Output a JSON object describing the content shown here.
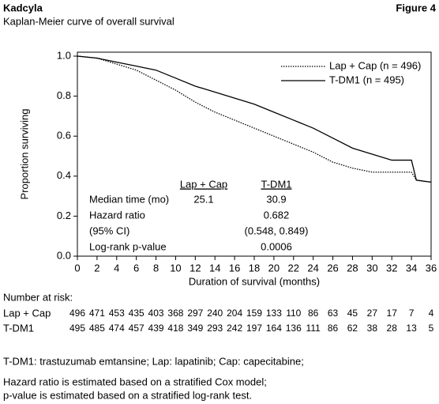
{
  "header": {
    "title": "Kadcyla",
    "figure": "Figure 4",
    "subtitle": "Kaplan-Meier curve of overall survival"
  },
  "chart_data": {
    "type": "line",
    "x": [
      0,
      2,
      4,
      6,
      8,
      10,
      12,
      14,
      16,
      18,
      20,
      22,
      24,
      26,
      28,
      30,
      32,
      34,
      34.5,
      36
    ],
    "series": [
      {
        "name": "Lap + Cap (n = 496)",
        "color": "#000000",
        "style": "dotted",
        "values": [
          1.0,
          0.99,
          0.96,
          0.93,
          0.88,
          0.83,
          0.77,
          0.72,
          0.68,
          0.64,
          0.6,
          0.56,
          0.52,
          0.47,
          0.44,
          0.42,
          0.42,
          0.42,
          0.38,
          0.37
        ]
      },
      {
        "name": "T-DM1 (n = 495)",
        "color": "#000000",
        "style": "solid",
        "values": [
          1.0,
          0.99,
          0.97,
          0.95,
          0.93,
          0.89,
          0.85,
          0.82,
          0.79,
          0.76,
          0.72,
          0.68,
          0.64,
          0.59,
          0.54,
          0.51,
          0.48,
          0.48,
          0.38,
          0.37
        ]
      }
    ],
    "xlabel": "Duration of survival (months)",
    "ylabel": "Proportion surviving",
    "xlim": [
      0,
      36
    ],
    "xticks": [
      0,
      2,
      4,
      6,
      8,
      10,
      12,
      14,
      16,
      18,
      20,
      22,
      24,
      26,
      28,
      30,
      32,
      34,
      36
    ],
    "ylim": [
      0,
      1
    ],
    "yticks": [
      {
        "value": 0,
        "label": "0.0"
      },
      {
        "value": 0.2,
        "label": "0.2"
      },
      {
        "value": 0.4,
        "label": "0.4"
      },
      {
        "value": 0.6,
        "label": "0.6"
      },
      {
        "value": 0.8,
        "label": "0.8"
      },
      {
        "value": 1,
        "label": "1.0"
      }
    ],
    "legend": "upper right",
    "stats": {
      "columns": [
        "Lap + Cap",
        "T-DM1"
      ],
      "rows": [
        {
          "label": "Median time (mo)",
          "cells": [
            25.1,
            30.9
          ]
        },
        {
          "label": "Hazard ratio",
          "tdm1": 0.682
        },
        {
          "label": "(95% CI)",
          "tdm1": "(0.548, 0.849)"
        },
        {
          "label": "Log-rank p-value",
          "tdm1": 0.0006
        }
      ]
    }
  },
  "at_risk": {
    "title": "Number at risk:",
    "rows": [
      {
        "name": "Lap + Cap",
        "counts": [
          496,
          471,
          453,
          435,
          403,
          368,
          297,
          240,
          204,
          159,
          133,
          110,
          86,
          63,
          45,
          27,
          17,
          7,
          4
        ]
      },
      {
        "name": "T-DM1",
        "counts": [
          495,
          485,
          474,
          457,
          439,
          418,
          349,
          293,
          242,
          197,
          164,
          136,
          111,
          86,
          62,
          38,
          28,
          13,
          5
        ]
      }
    ]
  },
  "footnotes": [
    "T-DM1: trastuzumab emtansine; Lap: lapatinib; Cap: capecitabine;",
    "Hazard ratio is estimated based on a stratified Cox model;",
    "p-value is estimated based on a stratified log-rank test."
  ]
}
